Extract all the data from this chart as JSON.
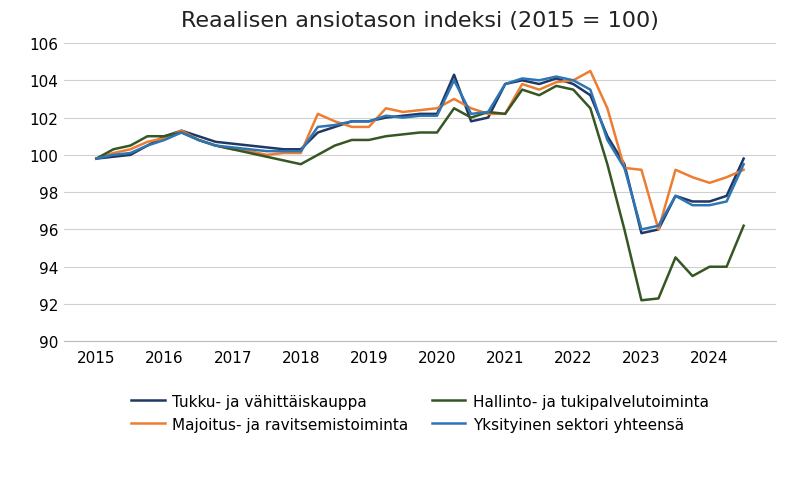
{
  "title": "Reaalisen ansiotason indeksi (2015 = 100)",
  "title_fontsize": 16,
  "background_color": "#ffffff",
  "ylim": [
    90,
    106
  ],
  "yticks": [
    90,
    92,
    94,
    96,
    98,
    100,
    102,
    104,
    106
  ],
  "xticks": [
    2015,
    2016,
    2017,
    2018,
    2019,
    2020,
    2021,
    2022,
    2023,
    2024
  ],
  "series_order": [
    "tukku",
    "majoitus",
    "hallinto",
    "yksityinen"
  ],
  "series": {
    "tukku": {
      "label": "Tukku- ja vähittäiskauppa",
      "color": "#1f3864",
      "linewidth": 1.8,
      "x": [
        2015.0,
        2015.25,
        2015.5,
        2015.75,
        2016.0,
        2016.25,
        2016.5,
        2016.75,
        2017.0,
        2017.25,
        2017.5,
        2017.75,
        2018.0,
        2018.25,
        2018.5,
        2018.75,
        2019.0,
        2019.25,
        2019.5,
        2019.75,
        2020.0,
        2020.25,
        2020.5,
        2020.75,
        2021.0,
        2021.25,
        2021.5,
        2021.75,
        2022.0,
        2022.25,
        2022.5,
        2022.75,
        2023.0,
        2023.25,
        2023.5,
        2023.75,
        2024.0,
        2024.25,
        2024.5
      ],
      "y": [
        99.8,
        99.9,
        100.0,
        100.5,
        101.0,
        101.3,
        101.0,
        100.7,
        100.6,
        100.5,
        100.4,
        100.3,
        100.3,
        101.2,
        101.5,
        101.8,
        101.8,
        102.0,
        102.1,
        102.2,
        102.2,
        104.3,
        101.8,
        102.0,
        103.8,
        104.0,
        103.8,
        104.1,
        103.8,
        103.2,
        101.0,
        99.5,
        95.8,
        96.0,
        97.8,
        97.5,
        97.5,
        97.8,
        99.8
      ]
    },
    "majoitus": {
      "label": "Majoitus- ja ravitsemistoiminta",
      "color": "#ed7d31",
      "linewidth": 1.8,
      "x": [
        2015.0,
        2015.25,
        2015.5,
        2015.75,
        2016.0,
        2016.25,
        2016.5,
        2016.75,
        2017.0,
        2017.25,
        2017.5,
        2017.75,
        2018.0,
        2018.25,
        2018.5,
        2018.75,
        2019.0,
        2019.25,
        2019.5,
        2019.75,
        2020.0,
        2020.25,
        2020.5,
        2020.75,
        2021.0,
        2021.25,
        2021.5,
        2021.75,
        2022.0,
        2022.25,
        2022.5,
        2022.75,
        2023.0,
        2023.25,
        2023.5,
        2023.75,
        2024.0,
        2024.25,
        2024.5
      ],
      "y": [
        99.8,
        100.1,
        100.3,
        100.7,
        100.9,
        101.3,
        100.8,
        100.5,
        100.3,
        100.2,
        100.0,
        100.1,
        100.1,
        102.2,
        101.8,
        101.5,
        101.5,
        102.5,
        102.3,
        102.4,
        102.5,
        103.0,
        102.5,
        102.2,
        102.2,
        103.8,
        103.5,
        103.9,
        104.0,
        104.5,
        102.5,
        99.3,
        99.2,
        96.0,
        99.2,
        98.8,
        98.5,
        98.8,
        99.2
      ]
    },
    "hallinto": {
      "label": "Hallinto- ja tukipalvelutoiminta",
      "color": "#375623",
      "linewidth": 1.8,
      "x": [
        2015.0,
        2015.25,
        2015.5,
        2015.75,
        2016.0,
        2016.25,
        2016.5,
        2016.75,
        2017.0,
        2017.25,
        2017.5,
        2017.75,
        2018.0,
        2018.25,
        2018.5,
        2018.75,
        2019.0,
        2019.25,
        2019.5,
        2019.75,
        2020.0,
        2020.25,
        2020.5,
        2020.75,
        2021.0,
        2021.25,
        2021.5,
        2021.75,
        2022.0,
        2022.25,
        2022.5,
        2022.75,
        2023.0,
        2023.25,
        2023.5,
        2023.75,
        2024.0,
        2024.25,
        2024.5
      ],
      "y": [
        99.8,
        100.3,
        100.5,
        101.0,
        101.0,
        101.2,
        100.8,
        100.5,
        100.3,
        100.1,
        99.9,
        99.7,
        99.5,
        100.0,
        100.5,
        100.8,
        100.8,
        101.0,
        101.1,
        101.2,
        101.2,
        102.5,
        102.0,
        102.3,
        102.2,
        103.5,
        103.2,
        103.7,
        103.5,
        102.5,
        99.5,
        96.0,
        92.2,
        92.3,
        94.5,
        93.5,
        94.0,
        94.0,
        96.2
      ]
    },
    "yksityinen": {
      "label": "Yksityinen sektori yhteensä",
      "color": "#2e75b6",
      "linewidth": 1.8,
      "x": [
        2015.0,
        2015.25,
        2015.5,
        2015.75,
        2016.0,
        2016.25,
        2016.5,
        2016.75,
        2017.0,
        2017.25,
        2017.5,
        2017.75,
        2018.0,
        2018.25,
        2018.5,
        2018.75,
        2019.0,
        2019.25,
        2019.5,
        2019.75,
        2020.0,
        2020.25,
        2020.5,
        2020.75,
        2021.0,
        2021.25,
        2021.5,
        2021.75,
        2022.0,
        2022.25,
        2022.5,
        2022.75,
        2023.0,
        2023.25,
        2023.5,
        2023.75,
        2024.0,
        2024.25,
        2024.5
      ],
      "y": [
        99.8,
        100.0,
        100.1,
        100.5,
        100.8,
        101.2,
        100.8,
        100.5,
        100.4,
        100.3,
        100.2,
        100.2,
        100.2,
        101.5,
        101.6,
        101.8,
        101.8,
        102.1,
        102.0,
        102.1,
        102.1,
        104.0,
        102.2,
        102.3,
        103.8,
        104.1,
        104.0,
        104.2,
        104.0,
        103.5,
        100.8,
        99.3,
        96.0,
        96.2,
        97.8,
        97.3,
        97.3,
        97.5,
        99.5
      ]
    }
  },
  "legend_order": [
    "tukku",
    "majoitus",
    "hallinto",
    "yksityinen"
  ],
  "legend_ncol": 2,
  "legend_fontsize": 11,
  "grid_color": "#d0d0d0",
  "grid_linewidth": 0.8,
  "tick_fontsize": 11
}
